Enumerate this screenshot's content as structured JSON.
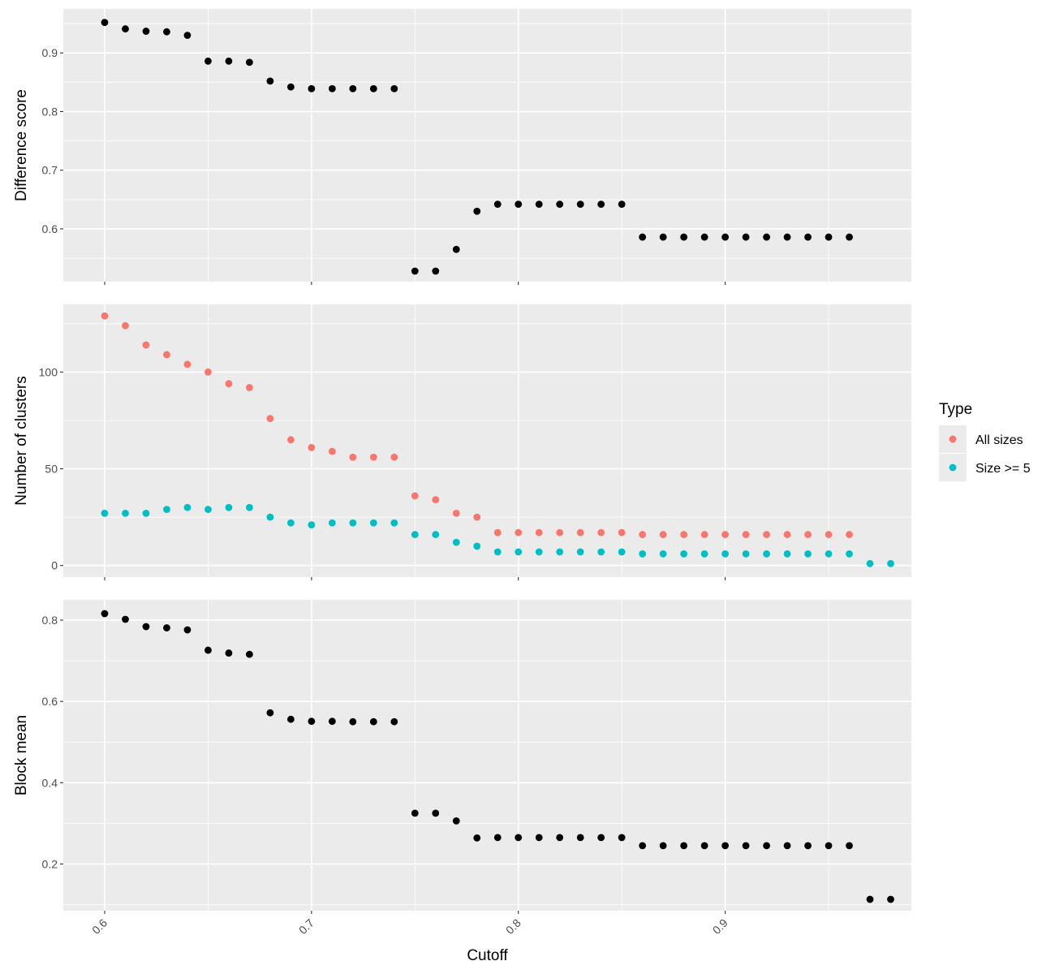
{
  "chart_data": {
    "type": "scatter",
    "xlabel": "Cutoff",
    "x_ticks": [
      0.6,
      0.7,
      0.8,
      0.9
    ],
    "x_tick_labels": [
      "0.6",
      "0.7",
      "0.8",
      "0.9"
    ],
    "xlim": [
      0.58,
      0.99
    ],
    "grid": true,
    "legend": {
      "title": "Type",
      "placement": "right",
      "entries": [
        {
          "label": "All sizes",
          "color": "#F8766D"
        },
        {
          "label": "Size >= 5",
          "color": "#00BFC4"
        }
      ]
    },
    "panels": [
      {
        "ylabel": "Difference score",
        "ylim": [
          0.51,
          0.975
        ],
        "y_ticks": [
          0.6,
          0.7,
          0.8,
          0.9
        ],
        "y_tick_labels": [
          "0.6",
          "0.7",
          "0.8",
          "0.9"
        ],
        "series": [
          {
            "color": "#000000",
            "x": [
              0.6,
              0.61,
              0.62,
              0.63,
              0.64,
              0.65,
              0.66,
              0.67,
              0.68,
              0.69,
              0.7,
              0.71,
              0.72,
              0.73,
              0.74,
              0.75,
              0.76,
              0.77,
              0.78,
              0.79,
              0.8,
              0.81,
              0.82,
              0.83,
              0.84,
              0.85,
              0.86,
              0.87,
              0.88,
              0.89,
              0.9,
              0.91,
              0.92,
              0.93,
              0.94,
              0.95,
              0.96
            ],
            "y": [
              0.952,
              0.941,
              0.937,
              0.936,
              0.93,
              0.886,
              0.886,
              0.884,
              0.852,
              0.842,
              0.839,
              0.839,
              0.839,
              0.839,
              0.839,
              0.528,
              0.528,
              0.565,
              0.63,
              0.642,
              0.642,
              0.642,
              0.642,
              0.642,
              0.642,
              0.642,
              0.586,
              0.586,
              0.586,
              0.586,
              0.586,
              0.586,
              0.586,
              0.586,
              0.586,
              0.586,
              0.586
            ]
          }
        ]
      },
      {
        "ylabel": "Number of clusters",
        "ylim": [
          -6,
          135
        ],
        "y_ticks": [
          0,
          50,
          100
        ],
        "y_tick_labels": [
          "0",
          "50",
          "100"
        ],
        "series": [
          {
            "name": "All sizes",
            "color": "#F8766D",
            "x": [
              0.6,
              0.61,
              0.62,
              0.63,
              0.64,
              0.65,
              0.66,
              0.67,
              0.68,
              0.69,
              0.7,
              0.71,
              0.72,
              0.73,
              0.74,
              0.75,
              0.76,
              0.77,
              0.78,
              0.79,
              0.8,
              0.81,
              0.82,
              0.83,
              0.84,
              0.85,
              0.86,
              0.87,
              0.88,
              0.89,
              0.9,
              0.91,
              0.92,
              0.93,
              0.94,
              0.95,
              0.96
            ],
            "y": [
              129,
              124,
              114,
              109,
              104,
              100,
              94,
              92,
              76,
              65,
              61,
              59,
              56,
              56,
              56,
              36,
              34,
              27,
              25,
              17,
              17,
              17,
              17,
              17,
              17,
              17,
              16,
              16,
              16,
              16,
              16,
              16,
              16,
              16,
              16,
              16,
              16
            ]
          },
          {
            "name": "Size >= 5",
            "color": "#00BFC4",
            "x": [
              0.6,
              0.61,
              0.62,
              0.63,
              0.64,
              0.65,
              0.66,
              0.67,
              0.68,
              0.69,
              0.7,
              0.71,
              0.72,
              0.73,
              0.74,
              0.75,
              0.76,
              0.77,
              0.78,
              0.79,
              0.8,
              0.81,
              0.82,
              0.83,
              0.84,
              0.85,
              0.86,
              0.87,
              0.88,
              0.89,
              0.9,
              0.91,
              0.92,
              0.93,
              0.94,
              0.95,
              0.96,
              0.97,
              0.98
            ],
            "y": [
              27,
              27,
              27,
              29,
              30,
              29,
              30,
              30,
              25,
              22,
              21,
              22,
              22,
              22,
              22,
              16,
              16,
              12,
              10,
              7,
              7,
              7,
              7,
              7,
              7,
              7,
              6,
              6,
              6,
              6,
              6,
              6,
              6,
              6,
              6,
              6,
              6,
              1,
              1
            ]
          }
        ]
      },
      {
        "ylabel": "Block mean",
        "ylim": [
          0.085,
          0.85
        ],
        "y_ticks": [
          0.2,
          0.4,
          0.6,
          0.8
        ],
        "y_tick_labels": [
          "0.2",
          "0.4",
          "0.6",
          "0.8"
        ],
        "series": [
          {
            "color": "#000000",
            "x": [
              0.6,
              0.61,
              0.62,
              0.63,
              0.64,
              0.65,
              0.66,
              0.67,
              0.68,
              0.69,
              0.7,
              0.71,
              0.72,
              0.73,
              0.74,
              0.75,
              0.76,
              0.77,
              0.78,
              0.79,
              0.8,
              0.81,
              0.82,
              0.83,
              0.84,
              0.85,
              0.86,
              0.87,
              0.88,
              0.89,
              0.9,
              0.91,
              0.92,
              0.93,
              0.94,
              0.95,
              0.96,
              0.97,
              0.98
            ],
            "y": [
              0.816,
              0.802,
              0.784,
              0.781,
              0.776,
              0.726,
              0.719,
              0.716,
              0.572,
              0.556,
              0.551,
              0.551,
              0.55,
              0.55,
              0.55,
              0.325,
              0.325,
              0.306,
              0.264,
              0.265,
              0.265,
              0.265,
              0.265,
              0.265,
              0.265,
              0.265,
              0.245,
              0.245,
              0.245,
              0.245,
              0.245,
              0.245,
              0.245,
              0.245,
              0.245,
              0.245,
              0.245,
              0.113,
              0.113
            ]
          }
        ]
      }
    ]
  }
}
